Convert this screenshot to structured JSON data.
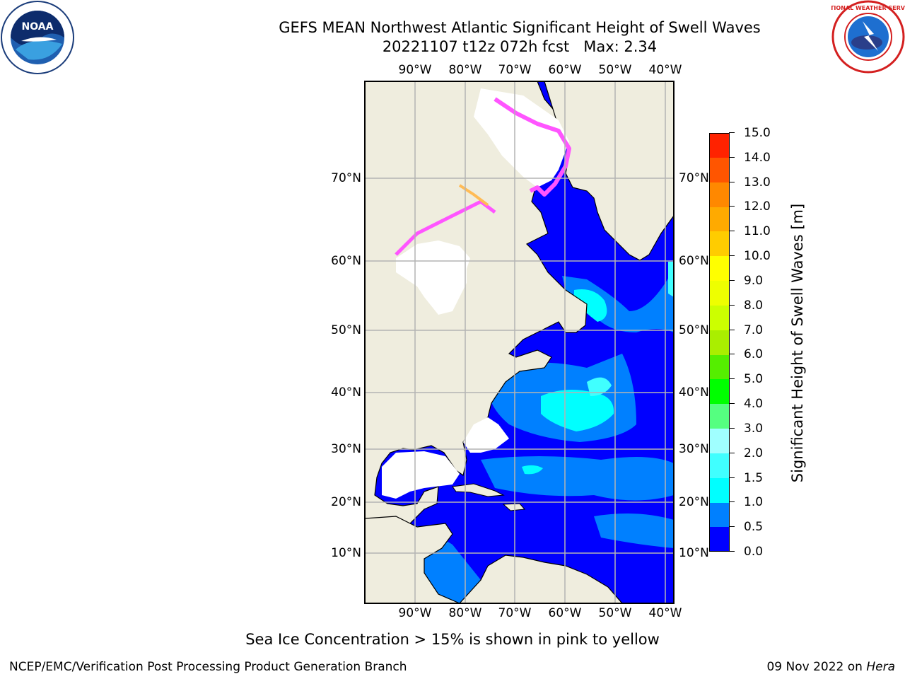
{
  "title": {
    "line1": "GEFS MEAN Northwest Atlantic Significant Height of Swell Waves",
    "line2": "20221107 t12z 072h fcst   Max: 2.34"
  },
  "logos": {
    "left": "noaa-logo",
    "left_text": "NOAA",
    "right": "national-weather-service-logo",
    "right_text": "NATIONAL WEATHER SERVICE"
  },
  "map": {
    "longitude_labels": [
      "90°W",
      "80°W",
      "70°W",
      "60°W",
      "50°W",
      "40°W"
    ],
    "latitude_labels": [
      "70°N",
      "60°N",
      "50°N",
      "40°N",
      "30°N",
      "20°N",
      "10°N"
    ],
    "colors": {
      "land": "#efedde",
      "no_data": "#ffffff",
      "coastline": "#000000",
      "gridline": "#b4b4b4",
      "sea_ice": "#ff55ff"
    }
  },
  "colorbar": {
    "label": "Significant Height of Swell Waves [m]",
    "tick_labels": [
      "0.0",
      "0.5",
      "1.0",
      "1.5",
      "2.0",
      "3.0",
      "4.0",
      "5.0",
      "6.0",
      "7.0",
      "8.0",
      "9.0",
      "10.0",
      "11.0",
      "12.0",
      "13.0",
      "14.0",
      "15.0"
    ],
    "colors": [
      "#0000ff",
      "#0080ff",
      "#00ffff",
      "#40ffff",
      "#a0ffff",
      "#55ff80",
      "#00ff00",
      "#55ee00",
      "#aaee00",
      "#ccff00",
      "#eeff00",
      "#ffff00",
      "#ffcc00",
      "#ffaa00",
      "#ff8800",
      "#ff5500",
      "#ff2200"
    ]
  },
  "caption": "Sea Ice Concentration > 15% is shown in pink to yellow",
  "footer": {
    "left": "NCEP/EMC/Verification Post Processing Product Generation Branch",
    "date": "09 Nov 2022 on ",
    "host": "Hera"
  }
}
